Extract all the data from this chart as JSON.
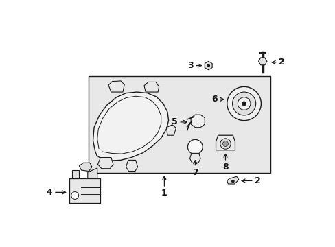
{
  "bg_color": "#ffffff",
  "box_bg": "#e8e8e8",
  "line_color": "#1a1a1a",
  "label_color": "#111111",
  "figsize": [
    4.89,
    3.6
  ],
  "dpi": 100
}
